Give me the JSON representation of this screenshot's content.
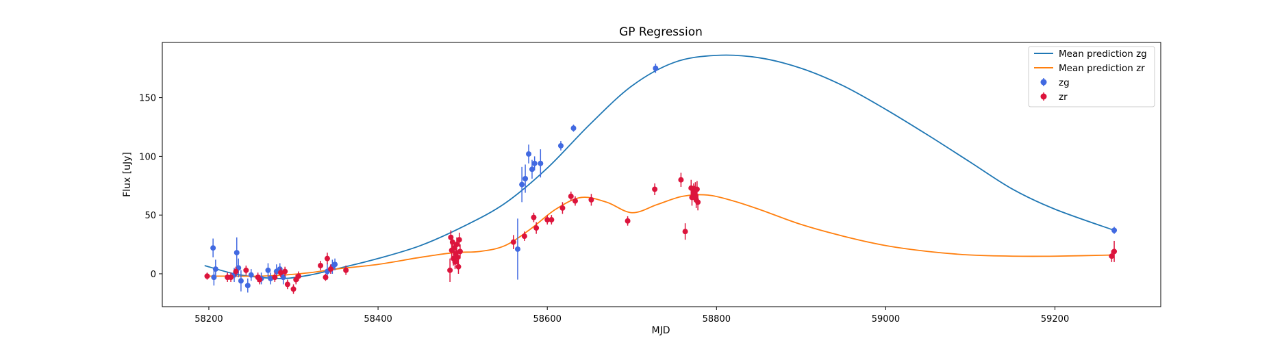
{
  "chart_data": {
    "type": "scatter",
    "title": "GP Regression",
    "xlabel": "MJD",
    "ylabel": "Flux [uJy]",
    "xlim": [
      58145,
      59325
    ],
    "ylim": [
      -28,
      197
    ],
    "xticks": [
      58200,
      58400,
      58600,
      58800,
      59000,
      59200
    ],
    "yticks": [
      0,
      50,
      100,
      150
    ],
    "grid": false,
    "legend_position": "top-right",
    "lines": [
      {
        "name": "Mean prediction zg",
        "color": "#1f77b4",
        "x": [
          58195,
          58230,
          58260,
          58290,
          58320,
          58350,
          58400,
          58450,
          58500,
          58550,
          58600,
          58650,
          58700,
          58750,
          58800,
          58850,
          58900,
          58950,
          59000,
          59050,
          59100,
          59150,
          59200,
          59270
        ],
        "y": [
          7,
          0,
          -3,
          -4,
          -1,
          4,
          13,
          24,
          40,
          60,
          90,
          127,
          160,
          180,
          186,
          184,
          175,
          160,
          140,
          118,
          95,
          72,
          55,
          37
        ]
      },
      {
        "name": "Mean prediction zr",
        "color": "#ff7f0e",
        "x": [
          58195,
          58230,
          58260,
          58290,
          58320,
          58350,
          58400,
          58450,
          58490,
          58520,
          58550,
          58580,
          58610,
          58640,
          58670,
          58700,
          58730,
          58760,
          58790,
          58820,
          58850,
          58900,
          58950,
          59000,
          59050,
          59100,
          59150,
          59200,
          59270
        ],
        "y": [
          -2,
          -2,
          -2,
          -1,
          1,
          4,
          8,
          14,
          18,
          19,
          24,
          38,
          55,
          65,
          61,
          52,
          59,
          66,
          67,
          62,
          55,
          42,
          32,
          24,
          19,
          16,
          15,
          15,
          16
        ]
      }
    ],
    "series": [
      {
        "name": "zg",
        "color": "#4169e1",
        "points": [
          {
            "x": 58205,
            "y": 22,
            "err": 8
          },
          {
            "x": 58208,
            "y": 4,
            "err": 8
          },
          {
            "x": 58206,
            "y": -3,
            "err": 7
          },
          {
            "x": 58230,
            "y": -1,
            "err": 6
          },
          {
            "x": 58233,
            "y": 18,
            "err": 13
          },
          {
            "x": 58235,
            "y": 5,
            "err": 8
          },
          {
            "x": 58238,
            "y": -6,
            "err": 9
          },
          {
            "x": 58246,
            "y": -10,
            "err": 6
          },
          {
            "x": 58250,
            "y": -1,
            "err": 5
          },
          {
            "x": 58262,
            "y": -4,
            "err": 5
          },
          {
            "x": 58270,
            "y": 3,
            "err": 6
          },
          {
            "x": 58273,
            "y": -4,
            "err": 5
          },
          {
            "x": 58280,
            "y": 2,
            "err": 6
          },
          {
            "x": 58284,
            "y": 4,
            "err": 5
          },
          {
            "x": 58288,
            "y": -3,
            "err": 6
          },
          {
            "x": 58340,
            "y": 2,
            "err": 7
          },
          {
            "x": 58346,
            "y": 6,
            "err": 6
          },
          {
            "x": 58349,
            "y": 8,
            "err": 5
          },
          {
            "x": 58565,
            "y": 21,
            "err": 26
          },
          {
            "x": 58570,
            "y": 76,
            "err": 15
          },
          {
            "x": 58574,
            "y": 81,
            "err": 12
          },
          {
            "x": 58578,
            "y": 102,
            "err": 8
          },
          {
            "x": 58582,
            "y": 89,
            "err": 8
          },
          {
            "x": 58585,
            "y": 94,
            "err": 6
          },
          {
            "x": 58592,
            "y": 94,
            "err": 12
          },
          {
            "x": 58616,
            "y": 109,
            "err": 4
          },
          {
            "x": 58631,
            "y": 124,
            "err": 3
          },
          {
            "x": 58728,
            "y": 175,
            "err": 4
          },
          {
            "x": 59270,
            "y": 37,
            "err": 3
          }
        ]
      },
      {
        "name": "zr",
        "color": "#dc143c",
        "points": [
          {
            "x": 58198,
            "y": -2,
            "err": 3
          },
          {
            "x": 58222,
            "y": -3,
            "err": 4
          },
          {
            "x": 58226,
            "y": -3,
            "err": 4
          },
          {
            "x": 58232,
            "y": 2,
            "err": 4
          },
          {
            "x": 58244,
            "y": 3,
            "err": 4
          },
          {
            "x": 58258,
            "y": -3,
            "err": 4
          },
          {
            "x": 58260,
            "y": -5,
            "err": 4
          },
          {
            "x": 58278,
            "y": -3,
            "err": 4
          },
          {
            "x": 58285,
            "y": 1,
            "err": 4
          },
          {
            "x": 58290,
            "y": 2,
            "err": 4
          },
          {
            "x": 58293,
            "y": -9,
            "err": 4
          },
          {
            "x": 58300,
            "y": -13,
            "err": 4
          },
          {
            "x": 58303,
            "y": -5,
            "err": 4
          },
          {
            "x": 58306,
            "y": -2,
            "err": 4
          },
          {
            "x": 58332,
            "y": 7,
            "err": 4
          },
          {
            "x": 58338,
            "y": -3,
            "err": 3
          },
          {
            "x": 58340,
            "y": 13,
            "err": 5
          },
          {
            "x": 58344,
            "y": 4,
            "err": 4
          },
          {
            "x": 58362,
            "y": 3,
            "err": 4
          },
          {
            "x": 58485,
            "y": 3,
            "err": 10
          },
          {
            "x": 58486,
            "y": 31,
            "err": 6
          },
          {
            "x": 58487,
            "y": 20,
            "err": 6
          },
          {
            "x": 58488,
            "y": 27,
            "err": 6
          },
          {
            "x": 58489,
            "y": 13,
            "err": 6
          },
          {
            "x": 58490,
            "y": 22,
            "err": 6
          },
          {
            "x": 58491,
            "y": 10,
            "err": 6
          },
          {
            "x": 58492,
            "y": 17,
            "err": 6
          },
          {
            "x": 58493,
            "y": 25,
            "err": 6
          },
          {
            "x": 58494,
            "y": 14,
            "err": 6
          },
          {
            "x": 58495,
            "y": 6,
            "err": 6
          },
          {
            "x": 58496,
            "y": 29,
            "err": 6
          },
          {
            "x": 58497,
            "y": 19,
            "err": 6
          },
          {
            "x": 58560,
            "y": 27,
            "err": 6
          },
          {
            "x": 58573,
            "y": 32,
            "err": 4
          },
          {
            "x": 58584,
            "y": 48,
            "err": 4
          },
          {
            "x": 58587,
            "y": 39,
            "err": 5
          },
          {
            "x": 58600,
            "y": 46,
            "err": 4
          },
          {
            "x": 58605,
            "y": 46,
            "err": 4
          },
          {
            "x": 58618,
            "y": 56,
            "err": 5
          },
          {
            "x": 58628,
            "y": 66,
            "err": 4
          },
          {
            "x": 58633,
            "y": 62,
            "err": 4
          },
          {
            "x": 58652,
            "y": 63,
            "err": 5
          },
          {
            "x": 58695,
            "y": 45,
            "err": 4
          },
          {
            "x": 58727,
            "y": 72,
            "err": 5
          },
          {
            "x": 58758,
            "y": 80,
            "err": 6
          },
          {
            "x": 58763,
            "y": 36,
            "err": 7
          },
          {
            "x": 58770,
            "y": 73,
            "err": 7
          },
          {
            "x": 58771,
            "y": 65,
            "err": 7
          },
          {
            "x": 58773,
            "y": 70,
            "err": 7
          },
          {
            "x": 58774,
            "y": 68,
            "err": 7
          },
          {
            "x": 58775,
            "y": 71,
            "err": 7
          },
          {
            "x": 58776,
            "y": 63,
            "err": 7
          },
          {
            "x": 58777,
            "y": 72,
            "err": 7
          },
          {
            "x": 58778,
            "y": 61,
            "err": 7
          },
          {
            "x": 59267,
            "y": 15,
            "err": 5
          },
          {
            "x": 59270,
            "y": 19,
            "err": 9
          }
        ]
      }
    ]
  }
}
